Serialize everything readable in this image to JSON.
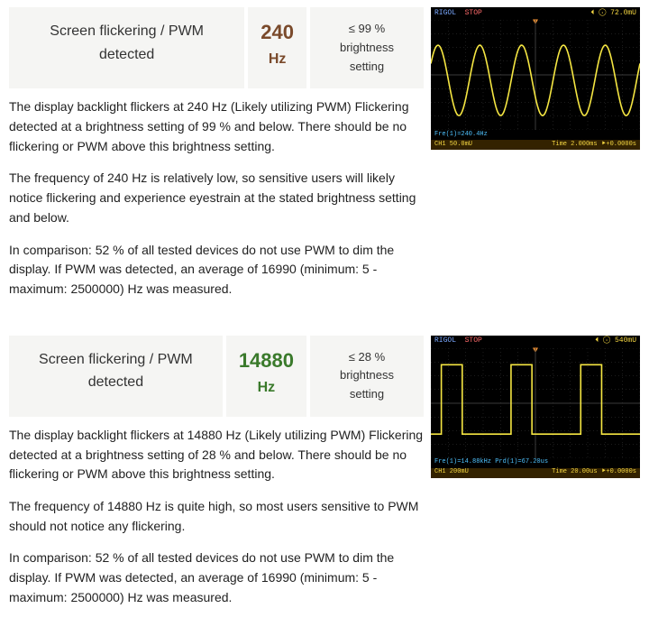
{
  "sections": [
    {
      "title": "Screen flickering / PWM detected",
      "freq_value": "240",
      "freq_unit": "Hz",
      "freq_color": "#7a4a2b",
      "setting_text": "≤ 99 % brightness setting",
      "para1": "The display backlight flickers at 240 Hz (Likely utilizing PWM) Flickering detected at a brightness setting of 99 % and below. There should be no flickering or PWM above this brightness setting.",
      "para2": "The frequency of 240 Hz is relatively low, so sensitive users will likely notice flickering and experience eyestrain at the stated brightness setting and below.",
      "para3": "In comparison: 52 % of all tested devices do not use PWM to dim the display. If PWM was detected, an average of 16990 (minimum: 5 - maximum: 2500000) Hz was measured.",
      "scope": {
        "brand": "RIGOL",
        "status": "STOP",
        "trig_right": "⏴ ⨀ 72.0mU",
        "wave_type": "sine",
        "freq_label": "Fre(1)=240.4Hz",
        "ch_label": "50.0mU",
        "time_label": "Time 2.000ms ⯈+0.0000s",
        "wave_color": "#f5e642",
        "grid_color": "#3a3a3a"
      }
    },
    {
      "title": "Screen flickering / PWM detected",
      "freq_value": "14880",
      "freq_unit": "Hz",
      "freq_color": "#3a7a2b",
      "setting_text": "≤ 28 % brightness setting",
      "para1": "The display backlight flickers at 14880 Hz (Likely utilizing PWM) Flickering detected at a brightness setting of 28 % and below. There should be no flickering or PWM above this brightness setting.",
      "para2": "The frequency of 14880 Hz is quite high, so most users sensitive to PWM should not notice any flickering.",
      "para3": "In comparison: 52 % of all tested devices do not use PWM to dim the display. If PWM was detected, an average of 16990 (minimum: 5 - maximum: 2500000) Hz was measured.",
      "scope": {
        "brand": "RIGOL",
        "status": "STOP",
        "trig_right": "⏴ ⨀ 540mU",
        "wave_type": "square",
        "freq_label": "Fre(1)=14.88kHz  Prd(1)=67.20us",
        "ch_label": "200mU",
        "time_label": "Time 20.00us ⯈+0.0000s",
        "wave_color": "#f5e642",
        "grid_color": "#3a3a3a"
      }
    }
  ]
}
